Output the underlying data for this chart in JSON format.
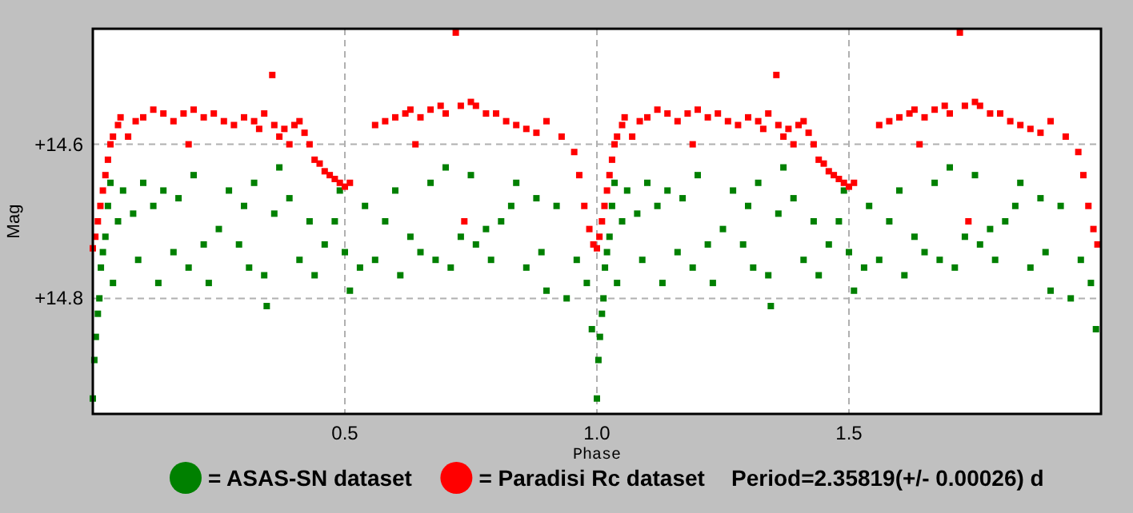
{
  "chart_data": {
    "type": "scatter",
    "xlabel": "Phase",
    "ylabel": "Mag",
    "xlim": [
      0,
      2
    ],
    "ylim": [
      14.95,
      14.45
    ],
    "xticks": [
      0.5,
      {
        "value": 1,
        "label": "1.0"
      },
      1.5
    ],
    "yticks": [
      {
        "value": 14.6,
        "label": "+14.6"
      },
      {
        "value": 14.8,
        "label": "+14.8"
      }
    ],
    "grid": true,
    "legend": "bottom",
    "marker": "square",
    "annotations": [
      "Period=2.35819(+/- 0.00026) d"
    ],
    "series": [
      {
        "name": "= ASAS-SN dataset",
        "color": "#008000",
        "x": [
          0,
          0.003,
          0.006,
          0.01,
          0.013,
          0.016,
          0.02,
          0.025,
          0.03,
          0.035,
          0.04,
          0.05,
          0.06,
          0.08,
          0.09,
          0.1,
          0.12,
          0.13,
          0.14,
          0.16,
          0.17,
          0.19,
          0.2,
          0.22,
          0.23,
          0.25,
          0.27,
          0.29,
          0.3,
          0.31,
          0.32,
          0.34,
          0.345,
          0.36,
          0.37,
          0.39,
          0.41,
          0.43,
          0.44,
          0.46,
          0.48,
          0.49,
          0.5,
          0.51,
          0.53,
          0.54,
          0.56,
          0.58,
          0.6,
          0.61,
          0.63,
          0.65,
          0.67,
          0.68,
          0.7,
          0.71,
          0.73,
          0.75,
          0.76,
          0.78,
          0.79,
          0.81,
          0.83,
          0.84,
          0.86,
          0.88,
          0.89,
          0.9,
          0.92,
          0.94,
          0.96,
          0.98,
          0.99,
          1,
          1.003,
          1.006,
          1.01,
          1.013,
          1.016,
          1.02,
          1.025,
          1.03,
          1.035,
          1.04,
          1.05,
          1.06,
          1.08,
          1.09,
          1.1,
          1.12,
          1.13,
          1.14,
          1.16,
          1.17,
          1.19,
          1.2,
          1.22,
          1.23,
          1.25,
          1.27,
          1.29,
          1.3,
          1.31,
          1.32,
          1.34,
          1.345,
          1.36,
          1.37,
          1.39,
          1.41,
          1.43,
          1.44,
          1.46,
          1.48,
          1.49,
          1.5,
          1.51,
          1.53,
          1.54,
          1.56,
          1.58,
          1.6,
          1.61,
          1.63,
          1.65,
          1.67,
          1.68,
          1.7,
          1.71,
          1.73,
          1.75,
          1.76,
          1.78,
          1.79,
          1.81,
          1.83,
          1.84,
          1.86,
          1.88,
          1.89,
          1.9,
          1.92,
          1.94,
          1.96,
          1.98,
          1.99
        ],
        "values": [
          14.93,
          14.88,
          14.85,
          14.82,
          14.8,
          14.76,
          14.74,
          14.72,
          14.68,
          14.65,
          14.78,
          14.7,
          14.66,
          14.69,
          14.75,
          14.65,
          14.68,
          14.78,
          14.66,
          14.74,
          14.67,
          14.76,
          14.64,
          14.73,
          14.78,
          14.71,
          14.66,
          14.73,
          14.68,
          14.76,
          14.65,
          14.77,
          14.81,
          14.69,
          14.63,
          14.67,
          14.75,
          14.7,
          14.77,
          14.73,
          14.7,
          14.66,
          14.74,
          14.79,
          14.76,
          14.68,
          14.75,
          14.7,
          14.66,
          14.77,
          14.72,
          14.74,
          14.65,
          14.75,
          14.63,
          14.76,
          14.72,
          14.64,
          14.73,
          14.71,
          14.75,
          14.7,
          14.68,
          14.65,
          14.76,
          14.67,
          14.74,
          14.79,
          14.68,
          14.8,
          14.75,
          14.78,
          14.84,
          14.93,
          14.88,
          14.85,
          14.82,
          14.8,
          14.76,
          14.74,
          14.72,
          14.68,
          14.65,
          14.78,
          14.7,
          14.66,
          14.69,
          14.75,
          14.65,
          14.68,
          14.78,
          14.66,
          14.74,
          14.67,
          14.76,
          14.64,
          14.73,
          14.78,
          14.71,
          14.66,
          14.73,
          14.68,
          14.76,
          14.65,
          14.77,
          14.81,
          14.69,
          14.63,
          14.67,
          14.75,
          14.7,
          14.77,
          14.73,
          14.7,
          14.66,
          14.74,
          14.79,
          14.76,
          14.68,
          14.75,
          14.7,
          14.66,
          14.77,
          14.72,
          14.74,
          14.65,
          14.75,
          14.63,
          14.76,
          14.72,
          14.64,
          14.73,
          14.71,
          14.75,
          14.7,
          14.68,
          14.65,
          14.76,
          14.67,
          14.74,
          14.79,
          14.68,
          14.8,
          14.75,
          14.78,
          14.84
        ]
      },
      {
        "name": "= Paradisi Rc dataset",
        "color": "#ff0000",
        "x": [
          0,
          0.005,
          0.01,
          0.015,
          0.02,
          0.025,
          0.03,
          0.035,
          0.04,
          0.05,
          0.055,
          0.07,
          0.085,
          0.1,
          0.12,
          0.14,
          0.16,
          0.18,
          0.19,
          0.2,
          0.22,
          0.24,
          0.26,
          0.28,
          0.3,
          0.32,
          0.33,
          0.34,
          0.356,
          0.36,
          0.37,
          0.38,
          0.39,
          0.4,
          0.41,
          0.42,
          0.43,
          0.44,
          0.45,
          0.46,
          0.47,
          0.48,
          0.49,
          0.5,
          0.51,
          0.56,
          0.58,
          0.6,
          0.62,
          0.63,
          0.64,
          0.65,
          0.67,
          0.69,
          0.7,
          0.72,
          0.73,
          0.737,
          0.75,
          0.76,
          0.78,
          0.8,
          0.82,
          0.84,
          0.86,
          0.88,
          0.9,
          0.93,
          0.955,
          0.965,
          0.975,
          0.985,
          0.993,
          1,
          1.005,
          1.01,
          1.015,
          1.02,
          1.025,
          1.03,
          1.035,
          1.04,
          1.05,
          1.055,
          1.07,
          1.085,
          1.1,
          1.12,
          1.14,
          1.16,
          1.18,
          1.19,
          1.2,
          1.22,
          1.24,
          1.26,
          1.28,
          1.3,
          1.32,
          1.33,
          1.34,
          1.356,
          1.36,
          1.37,
          1.38,
          1.39,
          1.4,
          1.41,
          1.42,
          1.43,
          1.44,
          1.45,
          1.46,
          1.47,
          1.48,
          1.49,
          1.5,
          1.51,
          1.56,
          1.58,
          1.6,
          1.62,
          1.63,
          1.64,
          1.65,
          1.67,
          1.69,
          1.7,
          1.72,
          1.73,
          1.737,
          1.75,
          1.76,
          1.78,
          1.8,
          1.82,
          1.84,
          1.86,
          1.88,
          1.9,
          1.93,
          1.955,
          1.965,
          1.975,
          1.985,
          1.993
        ],
        "values": [
          14.735,
          14.72,
          14.7,
          14.68,
          14.66,
          14.64,
          14.62,
          14.6,
          14.59,
          14.575,
          14.565,
          14.59,
          14.57,
          14.565,
          14.555,
          14.56,
          14.57,
          14.56,
          14.6,
          14.555,
          14.565,
          14.56,
          14.57,
          14.575,
          14.565,
          14.57,
          14.58,
          14.56,
          14.51,
          14.575,
          14.59,
          14.58,
          14.6,
          14.575,
          14.57,
          14.585,
          14.6,
          14.62,
          14.625,
          14.635,
          14.64,
          14.645,
          14.65,
          14.655,
          14.65,
          14.575,
          14.57,
          14.565,
          14.56,
          14.555,
          14.6,
          14.565,
          14.555,
          14.55,
          14.56,
          14.455,
          14.55,
          14.7,
          14.545,
          14.55,
          14.56,
          14.56,
          14.57,
          14.575,
          14.58,
          14.585,
          14.57,
          14.59,
          14.61,
          14.64,
          14.68,
          14.71,
          14.73,
          14.735,
          14.72,
          14.7,
          14.68,
          14.66,
          14.64,
          14.62,
          14.6,
          14.59,
          14.575,
          14.565,
          14.59,
          14.57,
          14.565,
          14.555,
          14.56,
          14.57,
          14.56,
          14.6,
          14.555,
          14.565,
          14.56,
          14.57,
          14.575,
          14.565,
          14.57,
          14.58,
          14.56,
          14.51,
          14.575,
          14.59,
          14.58,
          14.6,
          14.575,
          14.57,
          14.585,
          14.6,
          14.62,
          14.625,
          14.635,
          14.64,
          14.645,
          14.65,
          14.655,
          14.65,
          14.575,
          14.57,
          14.565,
          14.56,
          14.555,
          14.6,
          14.565,
          14.555,
          14.55,
          14.56,
          14.455,
          14.55,
          14.7,
          14.545,
          14.55,
          14.56,
          14.56,
          14.57,
          14.575,
          14.58,
          14.585,
          14.57,
          14.59,
          14.61,
          14.64,
          14.68,
          14.71,
          14.73
        ]
      }
    ]
  }
}
